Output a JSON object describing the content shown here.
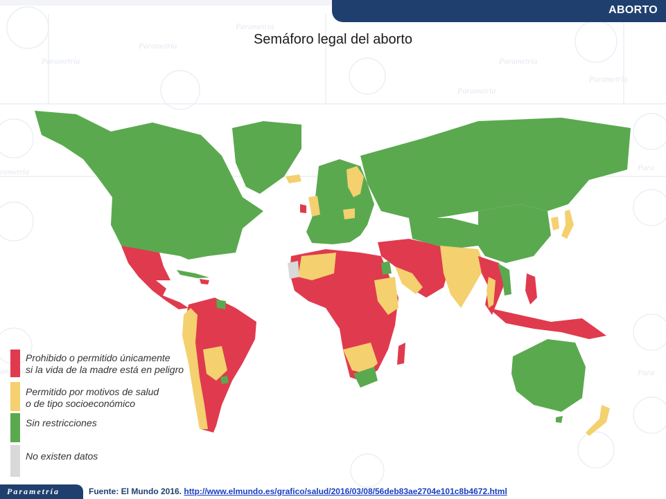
{
  "header": {
    "tab_label": "ABORTO"
  },
  "title": "Semáforo legal del aborto",
  "legend": {
    "items": [
      {
        "line1": "Prohibido o permitido únicamente",
        "line2": "si la vida de la madre está en peligro",
        "color": "#e03a4e"
      },
      {
        "line1": "Permitido por motivos de salud",
        "line2": "o de tipo socioeconómico",
        "color": "#f4d06f"
      },
      {
        "line1": "Sin restricciones",
        "line2": "",
        "color": "#5aa94f"
      },
      {
        "line1": "No existen datos",
        "line2": "",
        "color": "#d9d9d9"
      }
    ]
  },
  "colors": {
    "red": "#e03a4e",
    "yellow": "#f4d06f",
    "green": "#5aa94f",
    "grey": "#d9d9d9",
    "brand": "#1f3f6f"
  },
  "footer": {
    "logo": "Parametría",
    "source_label": "Fuente: El Mundo 2016.",
    "source_url": "http://www.elmundo.es/grafico/salud/2016/03/08/56deb83ae2704e101c8b4672.html"
  }
}
